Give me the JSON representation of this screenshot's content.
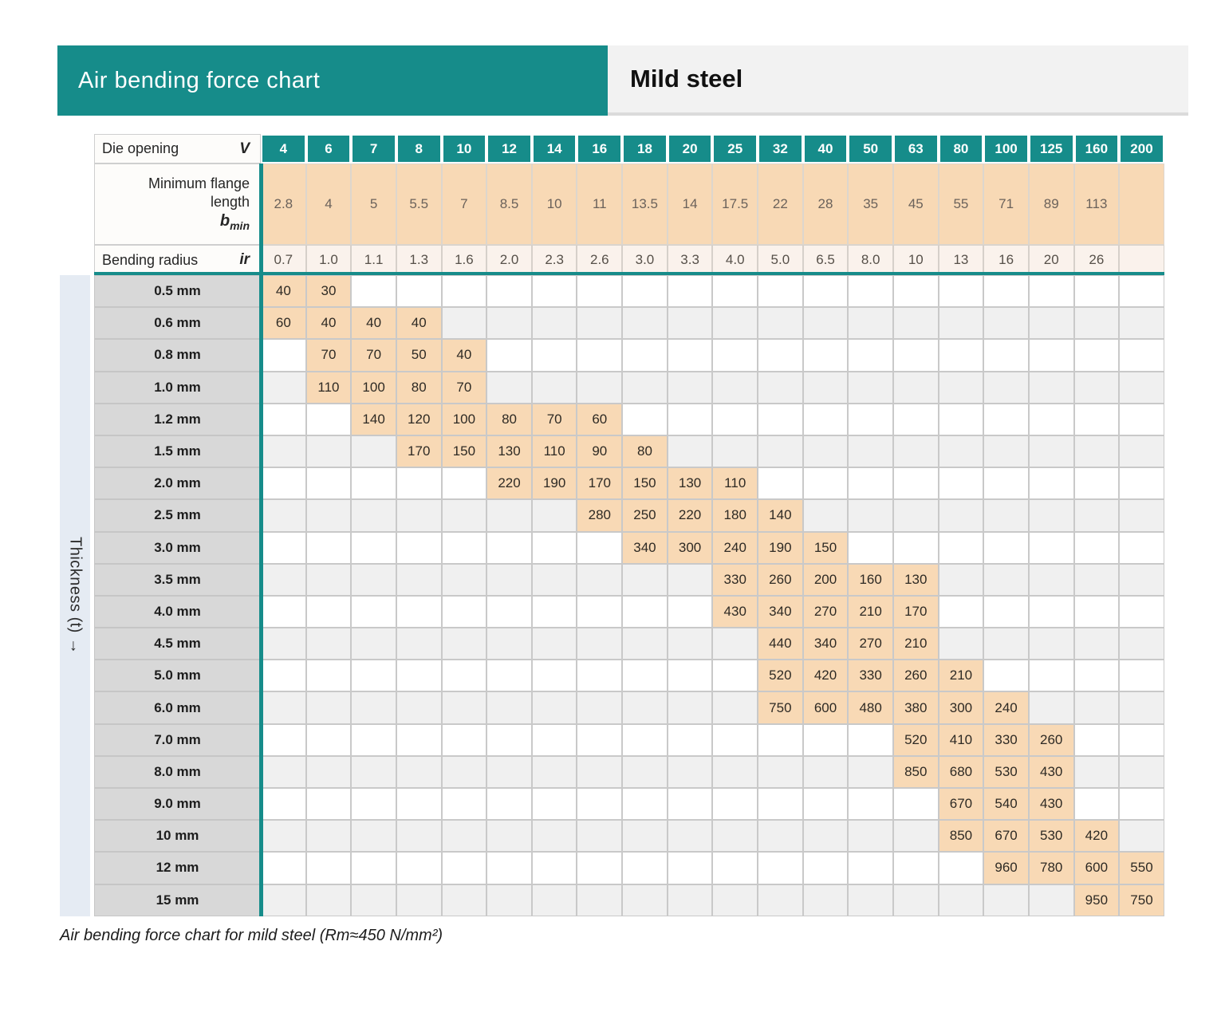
{
  "header": {
    "title": "Air bending force chart",
    "material": "Mild steel"
  },
  "caption": {
    "text": "Air bending force chart for mild steel (Rm≈450 N/mm²)"
  },
  "colors": {
    "teal": "#168c8a",
    "peach": "#f8d9b5",
    "radius_row_bg": "#faf2ec",
    "stripe_row": "#f0f0f0",
    "label_gray": "#d8d8d8",
    "strip_blue": "#e5ebf3",
    "material_band": "#f2f2f2"
  },
  "chart_data": {
    "type": "table",
    "title": "Air bending force chart",
    "material": "Mild steel",
    "die_opening_label": "Die opening",
    "die_opening_symbol": "V",
    "min_flange_label_line1": "Minimum flange",
    "min_flange_label_line2": "length",
    "min_flange_symbol": "b",
    "min_flange_symbol_sub": "min",
    "bending_radius_label": "Bending radius",
    "bending_radius_symbol": "ir",
    "thickness_axis_label": "Thickness (t) →",
    "die_opening_values": [
      "4",
      "6",
      "7",
      "8",
      "10",
      "12",
      "14",
      "16",
      "18",
      "20",
      "25",
      "32",
      "40",
      "50",
      "63",
      "80",
      "100",
      "125",
      "160",
      "200"
    ],
    "min_flange_length_values": [
      "2.8",
      "4",
      "5",
      "5.5",
      "7",
      "8.5",
      "10",
      "11",
      "13.5",
      "14",
      "17.5",
      "22",
      "28",
      "35",
      "45",
      "55",
      "71",
      "89",
      "113",
      ""
    ],
    "bending_radius_values": [
      "0.7",
      "1.0",
      "1.1",
      "1.3",
      "1.6",
      "2.0",
      "2.3",
      "2.6",
      "3.0",
      "3.3",
      "4.0",
      "5.0",
      "6.5",
      "8.0",
      "10",
      "13",
      "16",
      "20",
      "26",
      ""
    ],
    "rows": [
      {
        "thickness": "0.5 mm",
        "forces": [
          "40",
          "30",
          "",
          "",
          "",
          "",
          "",
          "",
          "",
          "",
          "",
          "",
          "",
          "",
          "",
          "",
          "",
          "",
          "",
          ""
        ]
      },
      {
        "thickness": "0.6 mm",
        "forces": [
          "60",
          "40",
          "40",
          "40",
          "",
          "",
          "",
          "",
          "",
          "",
          "",
          "",
          "",
          "",
          "",
          "",
          "",
          "",
          "",
          ""
        ]
      },
      {
        "thickness": "0.8 mm",
        "forces": [
          "",
          "70",
          "70",
          "50",
          "40",
          "",
          "",
          "",
          "",
          "",
          "",
          "",
          "",
          "",
          "",
          "",
          "",
          "",
          "",
          ""
        ]
      },
      {
        "thickness": "1.0 mm",
        "forces": [
          "",
          "110",
          "100",
          "80",
          "70",
          "",
          "",
          "",
          "",
          "",
          "",
          "",
          "",
          "",
          "",
          "",
          "",
          "",
          "",
          ""
        ]
      },
      {
        "thickness": "1.2 mm",
        "forces": [
          "",
          "",
          "140",
          "120",
          "100",
          "80",
          "70",
          "60",
          "",
          "",
          "",
          "",
          "",
          "",
          "",
          "",
          "",
          "",
          "",
          ""
        ]
      },
      {
        "thickness": "1.5 mm",
        "forces": [
          "",
          "",
          "",
          "170",
          "150",
          "130",
          "110",
          "90",
          "80",
          "",
          "",
          "",
          "",
          "",
          "",
          "",
          "",
          "",
          "",
          ""
        ]
      },
      {
        "thickness": "2.0 mm",
        "forces": [
          "",
          "",
          "",
          "",
          "",
          "220",
          "190",
          "170",
          "150",
          "130",
          "110",
          "",
          "",
          "",
          "",
          "",
          "",
          "",
          "",
          ""
        ]
      },
      {
        "thickness": "2.5 mm",
        "forces": [
          "",
          "",
          "",
          "",
          "",
          "",
          "",
          "280",
          "250",
          "220",
          "180",
          "140",
          "",
          "",
          "",
          "",
          "",
          "",
          "",
          ""
        ]
      },
      {
        "thickness": "3.0 mm",
        "forces": [
          "",
          "",
          "",
          "",
          "",
          "",
          "",
          "",
          "340",
          "300",
          "240",
          "190",
          "150",
          "",
          "",
          "",
          "",
          "",
          "",
          ""
        ]
      },
      {
        "thickness": "3.5 mm",
        "forces": [
          "",
          "",
          "",
          "",
          "",
          "",
          "",
          "",
          "",
          "",
          "330",
          "260",
          "200",
          "160",
          "130",
          "",
          "",
          "",
          "",
          ""
        ]
      },
      {
        "thickness": "4.0 mm",
        "forces": [
          "",
          "",
          "",
          "",
          "",
          "",
          "",
          "",
          "",
          "",
          "430",
          "340",
          "270",
          "210",
          "170",
          "",
          "",
          "",
          "",
          ""
        ]
      },
      {
        "thickness": "4.5 mm",
        "forces": [
          "",
          "",
          "",
          "",
          "",
          "",
          "",
          "",
          "",
          "",
          "",
          "440",
          "340",
          "270",
          "210",
          "",
          "",
          "",
          "",
          ""
        ]
      },
      {
        "thickness": "5.0 mm",
        "forces": [
          "",
          "",
          "",
          "",
          "",
          "",
          "",
          "",
          "",
          "",
          "",
          "520",
          "420",
          "330",
          "260",
          "210",
          "",
          "",
          "",
          ""
        ]
      },
      {
        "thickness": "6.0 mm",
        "forces": [
          "",
          "",
          "",
          "",
          "",
          "",
          "",
          "",
          "",
          "",
          "",
          "750",
          "600",
          "480",
          "380",
          "300",
          "240",
          "",
          "",
          ""
        ]
      },
      {
        "thickness": "7.0 mm",
        "forces": [
          "",
          "",
          "",
          "",
          "",
          "",
          "",
          "",
          "",
          "",
          "",
          "",
          "",
          "",
          "520",
          "410",
          "330",
          "260",
          "",
          ""
        ]
      },
      {
        "thickness": "8.0 mm",
        "forces": [
          "",
          "",
          "",
          "",
          "",
          "",
          "",
          "",
          "",
          "",
          "",
          "",
          "",
          "",
          "850",
          "680",
          "530",
          "430",
          "",
          ""
        ]
      },
      {
        "thickness": "9.0 mm",
        "forces": [
          "",
          "",
          "",
          "",
          "",
          "",
          "",
          "",
          "",
          "",
          "",
          "",
          "",
          "",
          "",
          "670",
          "540",
          "430",
          "",
          ""
        ]
      },
      {
        "thickness": "10 mm",
        "forces": [
          "",
          "",
          "",
          "",
          "",
          "",
          "",
          "",
          "",
          "",
          "",
          "",
          "",
          "",
          "",
          "850",
          "670",
          "530",
          "420",
          ""
        ]
      },
      {
        "thickness": "12 mm",
        "forces": [
          "",
          "",
          "",
          "",
          "",
          "",
          "",
          "",
          "",
          "",
          "",
          "",
          "",
          "",
          "",
          "",
          "960",
          "780",
          "600",
          "550"
        ]
      },
      {
        "thickness": "15 mm",
        "forces": [
          "",
          "",
          "",
          "",
          "",
          "",
          "",
          "",
          "",
          "",
          "",
          "",
          "",
          "",
          "",
          "",
          "",
          "",
          "950",
          "750"
        ]
      }
    ]
  }
}
